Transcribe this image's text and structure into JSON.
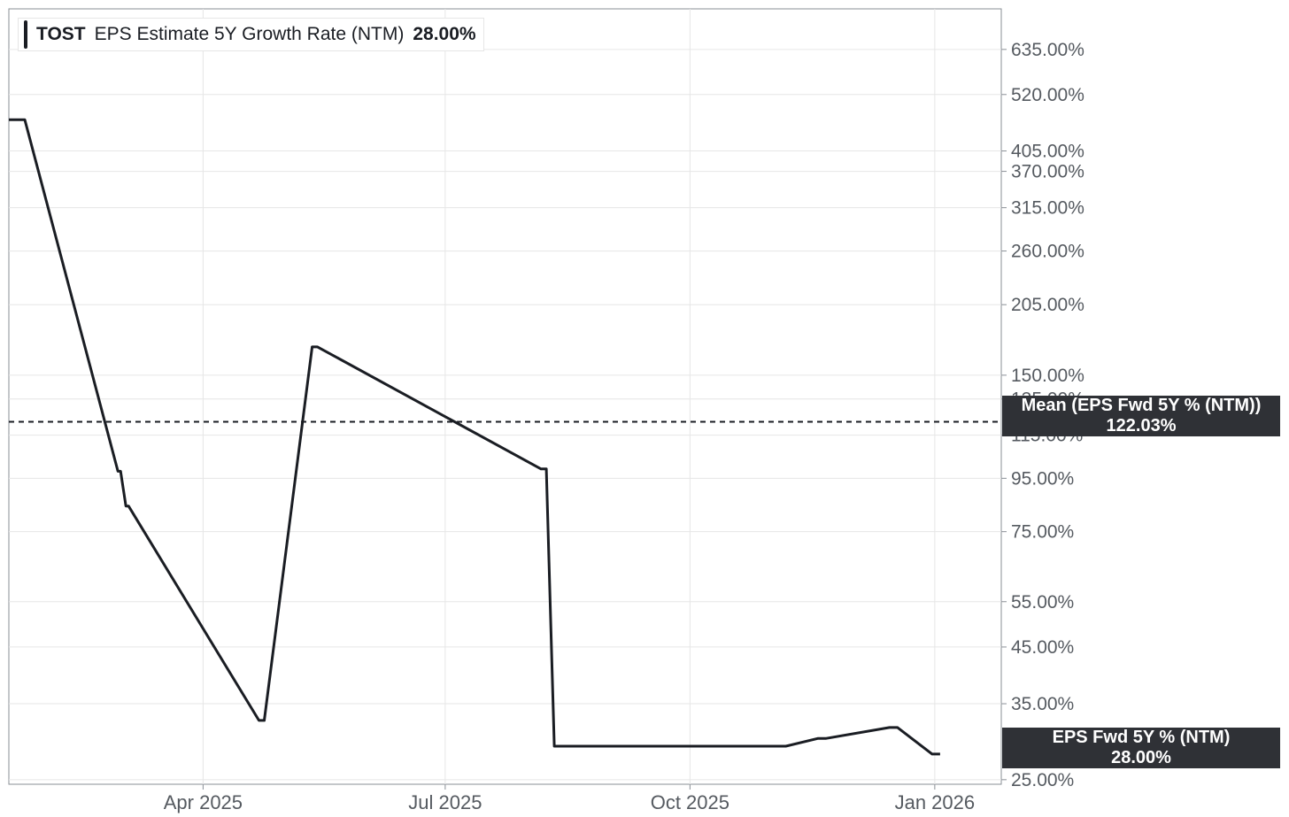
{
  "legend": {
    "ticker": "TOST",
    "series_name": "EPS Estimate 5Y Growth Rate (NTM)",
    "value": "28.00%"
  },
  "mean_tag": {
    "line1": "Mean (EPS Fwd 5Y % (NTM))",
    "line2": "122.03%"
  },
  "last_tag": {
    "line1": "EPS Fwd 5Y % (NTM)",
    "line2": "28.00%"
  },
  "colors": {
    "line": "#1a1d23",
    "grid": "#e6e6e6",
    "tag_bg": "#2f3136",
    "axis_text": "#555a60"
  },
  "chart_data": {
    "type": "line",
    "scale_y": "log",
    "ylim": [
      24.5,
      760
    ],
    "xlim": [
      "2025-01-18",
      "2026-01-26"
    ],
    "y_ticks": [
      25,
      35,
      45,
      55,
      75,
      95,
      115,
      135,
      150,
      205,
      260,
      315,
      370,
      405,
      520,
      635
    ],
    "y_tick_labels": [
      "25.00%",
      "35.00%",
      "45.00%",
      "55.00%",
      "75.00%",
      "95.00%",
      "115.00%",
      "135.00%",
      "150.00%",
      "205.00%",
      "260.00%",
      "315.00%",
      "370.00%",
      "405.00%",
      "520.00%",
      "635.00%"
    ],
    "x_ticks": [
      "2025-04-01",
      "2025-07-01",
      "2025-10-01",
      "2026-01-01"
    ],
    "x_tick_labels": [
      "Apr 2025",
      "Jul 2025",
      "Oct 2025",
      "Jan 2026"
    ],
    "mean": 122.03,
    "series": [
      {
        "values": [
          {
            "x": "2025-01-18",
            "y": 465
          },
          {
            "x": "2025-01-24",
            "y": 465
          },
          {
            "x": "2025-02-28",
            "y": 98
          },
          {
            "x": "2025-03-01",
            "y": 98
          },
          {
            "x": "2025-03-03",
            "y": 84
          },
          {
            "x": "2025-03-04",
            "y": 84
          },
          {
            "x": "2025-04-22",
            "y": 32.5
          },
          {
            "x": "2025-04-24",
            "y": 32.5
          },
          {
            "x": "2025-05-12",
            "y": 170
          },
          {
            "x": "2025-05-14",
            "y": 170
          },
          {
            "x": "2025-08-06",
            "y": 99
          },
          {
            "x": "2025-08-08",
            "y": 99
          },
          {
            "x": "2025-08-11",
            "y": 29
          },
          {
            "x": "2025-11-06",
            "y": 29
          },
          {
            "x": "2025-11-18",
            "y": 30
          },
          {
            "x": "2025-11-21",
            "y": 30
          },
          {
            "x": "2025-12-15",
            "y": 31.5
          },
          {
            "x": "2025-12-18",
            "y": 31.5
          },
          {
            "x": "2025-12-31",
            "y": 28
          },
          {
            "x": "2026-01-03",
            "y": 28
          }
        ]
      }
    ]
  }
}
